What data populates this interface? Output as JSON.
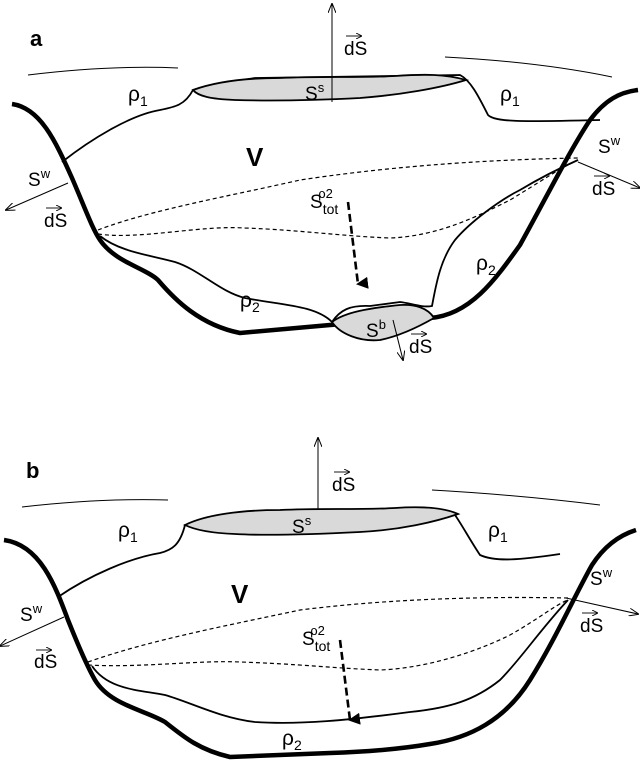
{
  "panels": [
    {
      "label": "a",
      "rho1_left": "ρ",
      "rho1_right": "ρ",
      "rho1_sub": "1",
      "rho2_left": "ρ",
      "rho2_right": "ρ",
      "rho2_sub": "2",
      "volume": "V",
      "surface_top": "S",
      "surface_top_sup": "s",
      "wall_left": "S",
      "wall_right": "S",
      "wall_sup": "w",
      "bottom": "S",
      "bottom_sup": "b",
      "stot": "S",
      "stot_sub": "tot",
      "stot_sup": "ρ2",
      "ds": "dS"
    },
    {
      "label": "b",
      "rho1_left": "ρ",
      "rho1_right": "ρ",
      "rho1_sub": "1",
      "rho2": "ρ",
      "rho2_sub": "2",
      "volume": "V",
      "surface_top": "S",
      "surface_top_sup": "s",
      "wall_left": "S",
      "wall_right": "S",
      "wall_sup": "w",
      "stot": "S",
      "stot_sub": "tot",
      "stot_sup": "ρ2",
      "ds": "dS"
    }
  ]
}
